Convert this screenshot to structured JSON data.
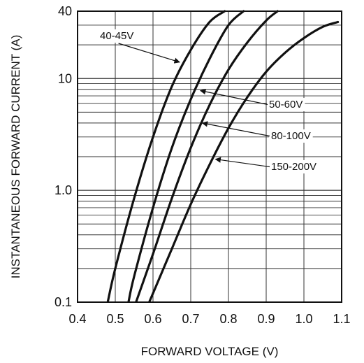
{
  "chart_data": {
    "type": "line",
    "xlabel": "FORWARD VOLTAGE (V)",
    "ylabel": "INSTANTANEOUS FORWARD CURRENT (A)",
    "xlim": [
      0.4,
      1.1
    ],
    "ylim": [
      0.1,
      40
    ],
    "yscale": "log",
    "grid": true,
    "x_ticks": [
      {
        "value": 0.4,
        "label": "0.4"
      },
      {
        "value": 0.5,
        "label": "0.5"
      },
      {
        "value": 0.6,
        "label": "0.6"
      },
      {
        "value": 0.7,
        "label": "0.7"
      },
      {
        "value": 0.8,
        "label": "0.8"
      },
      {
        "value": 0.9,
        "label": "0.9"
      },
      {
        "value": 1.0,
        "label": "1.0"
      },
      {
        "value": 1.1,
        "label": "1.1"
      }
    ],
    "y_ticks": [
      {
        "value": 0.1,
        "label": "0.1"
      },
      {
        "value": 1.0,
        "label": "1.0"
      },
      {
        "value": 10,
        "label": "10"
      },
      {
        "value": 40,
        "label": "40"
      }
    ],
    "series": [
      {
        "name": "40-45V",
        "x": [
          0.48,
          0.5,
          0.55,
          0.6,
          0.65,
          0.7,
          0.75,
          0.79
        ],
        "y": [
          0.1,
          0.2,
          0.85,
          3.0,
          8.5,
          18,
          32,
          40
        ]
      },
      {
        "name": "50-60V",
        "x": [
          0.535,
          0.55,
          0.6,
          0.65,
          0.7,
          0.75,
          0.8,
          0.84
        ],
        "y": [
          0.1,
          0.17,
          0.7,
          2.4,
          6.5,
          15,
          30,
          40
        ]
      },
      {
        "name": "80-100V",
        "x": [
          0.555,
          0.6,
          0.65,
          0.7,
          0.75,
          0.8,
          0.85,
          0.9,
          0.93
        ],
        "y": [
          0.1,
          0.27,
          0.85,
          2.4,
          5.8,
          12,
          21,
          33,
          40
        ]
      },
      {
        "name": "150-200V",
        "x": [
          0.59,
          0.6,
          0.65,
          0.7,
          0.75,
          0.8,
          0.85,
          0.9,
          0.95,
          1.0,
          1.05,
          1.09
        ],
        "y": [
          0.1,
          0.12,
          0.3,
          0.75,
          1.7,
          3.6,
          6.8,
          11.5,
          17,
          23,
          29,
          32
        ]
      }
    ],
    "callouts": [
      {
        "label": "40-45V",
        "target": [
          0.665,
          14
        ]
      },
      {
        "label": "50-60V",
        "target": [
          0.72,
          7.8
        ]
      },
      {
        "label": "80-100V",
        "target": [
          0.725,
          4.0
        ]
      },
      {
        "label": "150-200V",
        "target": [
          0.76,
          1.9
        ]
      }
    ],
    "colors": {
      "line": "#111111",
      "grid": "#333333",
      "background": "#ffffff"
    }
  }
}
